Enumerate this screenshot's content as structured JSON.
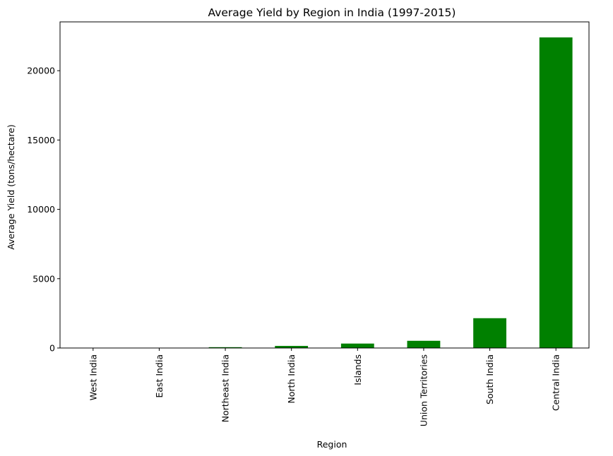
{
  "chart_data": {
    "type": "bar",
    "title": "Average Yield by Region in India (1997-2015)",
    "xlabel": "Region",
    "ylabel": "Average Yield (tons/hectare)",
    "categories": [
      "West India",
      "East India",
      "Northeast India",
      "North India",
      "Islands",
      "Union Territories",
      "South India",
      "Central India"
    ],
    "values": [
      8,
      15,
      60,
      150,
      320,
      520,
      2150,
      22400
    ],
    "ylim": [
      0,
      23520
    ],
    "yticks": [
      0,
      5000,
      10000,
      15000,
      20000
    ],
    "ytick_labels": [
      "0",
      "5000",
      "10000",
      "15000",
      "20000"
    ],
    "bar_color": "#008000",
    "grid": false,
    "legend": "none"
  }
}
